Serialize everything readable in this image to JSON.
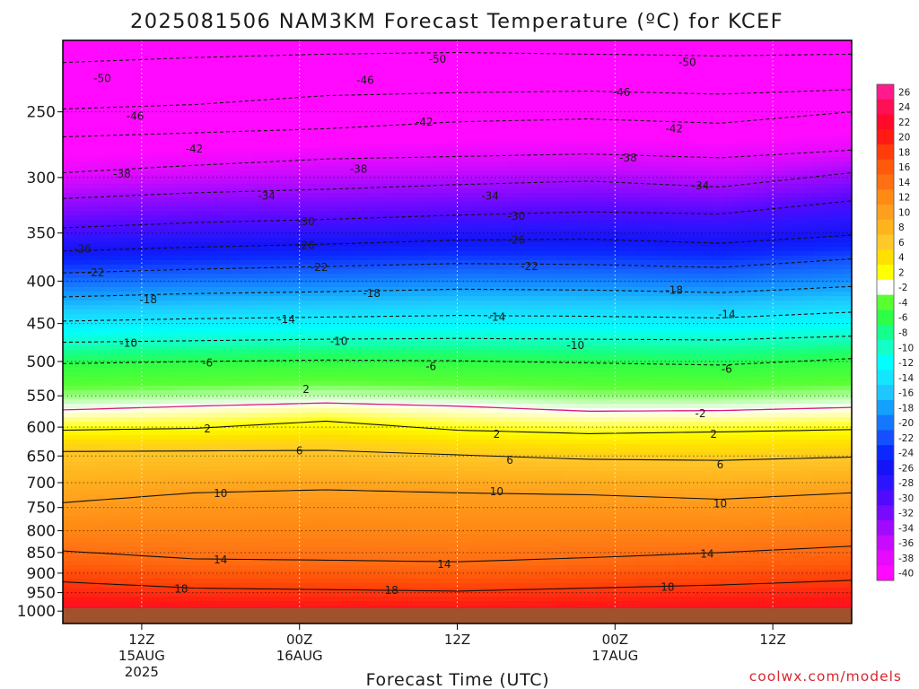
{
  "chart_data": {
    "type": "heatmap",
    "title": "2025081506 NAM3KM Forecast Temperature (ºC) for KCEF",
    "xlabel": "Forecast Time (UTC)",
    "ylabel": "",
    "credit": "coolwx.com/models",
    "y_scale": "log-pressure",
    "y_levels": [
      250,
      300,
      350,
      400,
      450,
      500,
      550,
      600,
      650,
      700,
      750,
      800,
      850,
      900,
      950,
      1000
    ],
    "y_tick_labels": [
      "250",
      "300",
      "350",
      "400",
      "450",
      "500",
      "550",
      "600",
      "650",
      "700",
      "750",
      "800",
      "850",
      "900",
      "950",
      "1000"
    ],
    "ylim": [
      1035,
      205
    ],
    "x_ticks": [
      {
        "hour": 6,
        "l1": "12Z",
        "l2": "15AUG",
        "l3": "2025"
      },
      {
        "hour": 18,
        "l1": "00Z",
        "l2": "16AUG",
        "l3": ""
      },
      {
        "hour": 30,
        "l1": "12Z",
        "l2": "",
        "l3": ""
      },
      {
        "hour": 42,
        "l1": "00Z",
        "l2": "17AUG",
        "l3": ""
      },
      {
        "hour": 54,
        "l1": "12Z",
        "l2": "",
        "l3": ""
      }
    ],
    "xlim": [
      0,
      60
    ],
    "grid": "dotted",
    "colorbar": {
      "placement": "right",
      "labels": [
        "26",
        "24",
        "22",
        "20",
        "18",
        "16",
        "14",
        "12",
        "10",
        "8",
        "6",
        "4",
        "2",
        "-2",
        "-4",
        "-6",
        "-8",
        "-10",
        "-12",
        "-14",
        "-16",
        "-18",
        "-20",
        "-22",
        "-24",
        "-26",
        "-28",
        "-30",
        "-32",
        "-34",
        "-36",
        "-38",
        "-40"
      ],
      "colors": [
        "#ff1b8c",
        "#ff0f55",
        "#ff0a2a",
        "#ff1a14",
        "#ff3c0a",
        "#ff5a0a",
        "#ff6f14",
        "#ff8a14",
        "#ff9f1e",
        "#ffb41e",
        "#ffc828",
        "#ffe000",
        "#ffff00",
        "#ffffff",
        "#5aff32",
        "#2dff46",
        "#14ff8c",
        "#14ffc8",
        "#00ffff",
        "#14e6ff",
        "#1ec8ff",
        "#14a0ff",
        "#1478ff",
        "#1450ff",
        "#0a28ff",
        "#1414f5",
        "#2d14ff",
        "#500aff",
        "#780aff",
        "#a00aff",
        "#c80aff",
        "#e60aff",
        "#ff0aff"
      ]
    },
    "isotherms": [
      {
        "temp": -50,
        "p": [
          218,
          215,
          213,
          212,
          213,
          214,
          213
        ]
      },
      {
        "temp": -46,
        "p": [
          248,
          245,
          239,
          237,
          236,
          238,
          235
        ]
      },
      {
        "temp": -42,
        "p": [
          268,
          265,
          262,
          257,
          255,
          258,
          250
        ]
      },
      {
        "temp": -38,
        "p": [
          296,
          290,
          285,
          283,
          281,
          284,
          278
        ]
      },
      {
        "temp": -34,
        "p": [
          318,
          313,
          310,
          306,
          303,
          308,
          296
        ]
      },
      {
        "temp": -30,
        "p": [
          345,
          340,
          337,
          333,
          330,
          332,
          320
        ]
      },
      {
        "temp": -26,
        "p": [
          368,
          364,
          361,
          357,
          356,
          360,
          352
        ]
      },
      {
        "temp": -22,
        "p": [
          391,
          387,
          384,
          381,
          382,
          385,
          376
        ]
      },
      {
        "temp": -18,
        "p": [
          418,
          414,
          412,
          409,
          410,
          413,
          406
        ]
      },
      {
        "temp": -14,
        "p": [
          447,
          444,
          442,
          440,
          441,
          443,
          436
        ]
      },
      {
        "temp": -10,
        "p": [
          474,
          472,
          470,
          469,
          470,
          471,
          466
        ]
      },
      {
        "temp": -6,
        "p": [
          503,
          500,
          498,
          499,
          502,
          505,
          496
        ]
      },
      {
        "temp": -2,
        "p": [
          572,
          566,
          561,
          566,
          574,
          573,
          568
        ]
      },
      {
        "temp": 2,
        "p": [
          605,
          602,
          590,
          605,
          611,
          608,
          604
        ]
      },
      {
        "temp": 6,
        "p": [
          642,
          641,
          640,
          648,
          656,
          658,
          652
        ]
      },
      {
        "temp": 10,
        "p": [
          740,
          720,
          714,
          720,
          724,
          733,
          720
        ]
      },
      {
        "temp": 14,
        "p": [
          846,
          865,
          868,
          872,
          862,
          850,
          835
        ]
      },
      {
        "temp": 18,
        "p": [
          922,
          938,
          942,
          946,
          938,
          930,
          918
        ]
      }
    ],
    "isotherm_hours": [
      0,
      10,
      20,
      30,
      40,
      50,
      60
    ],
    "contour_labels": [
      {
        "text": "-50",
        "hour": 3,
        "p": 228
      },
      {
        "text": "-50",
        "hour": 28.5,
        "p": 216
      },
      {
        "text": "-50",
        "hour": 47.5,
        "p": 218
      },
      {
        "text": "-46",
        "hour": 5.5,
        "p": 253
      },
      {
        "text": "-46",
        "hour": 23,
        "p": 229
      },
      {
        "text": "-46",
        "hour": 42.5,
        "p": 237
      },
      {
        "text": "-42",
        "hour": 10,
        "p": 277
      },
      {
        "text": "-42",
        "hour": 27.5,
        "p": 257
      },
      {
        "text": "-42",
        "hour": 46.5,
        "p": 262
      },
      {
        "text": "-38",
        "hour": 4.5,
        "p": 297
      },
      {
        "text": "-38",
        "hour": 22.5,
        "p": 293
      },
      {
        "text": "-38",
        "hour": 43,
        "p": 284
      },
      {
        "text": "-34",
        "hour": 15.5,
        "p": 316
      },
      {
        "text": "-34",
        "hour": 32.5,
        "p": 316
      },
      {
        "text": "-34",
        "hour": 48.5,
        "p": 307
      },
      {
        "text": "-30",
        "hour": 18.5,
        "p": 339
      },
      {
        "text": "-30",
        "hour": 34.5,
        "p": 334
      },
      {
        "text": "-26",
        "hour": 1.5,
        "p": 366
      },
      {
        "text": "-26",
        "hour": 18.5,
        "p": 362
      },
      {
        "text": "-26",
        "hour": 34.5,
        "p": 357
      },
      {
        "text": "-22",
        "hour": 2.5,
        "p": 391
      },
      {
        "text": "-22",
        "hour": 19.5,
        "p": 385
      },
      {
        "text": "-22",
        "hour": 35.5,
        "p": 384
      },
      {
        "text": "-18",
        "hour": 6.5,
        "p": 421
      },
      {
        "text": "-18",
        "hour": 23.5,
        "p": 414
      },
      {
        "text": "-18",
        "hour": 46.5,
        "p": 410
      },
      {
        "text": "-14",
        "hour": 17,
        "p": 445
      },
      {
        "text": "-14",
        "hour": 33,
        "p": 442
      },
      {
        "text": "-14",
        "hour": 50.5,
        "p": 439
      },
      {
        "text": "-10",
        "hour": 5,
        "p": 475
      },
      {
        "text": "-10",
        "hour": 21,
        "p": 473
      },
      {
        "text": "-10",
        "hour": 39,
        "p": 478
      },
      {
        "text": "-6",
        "hour": 11,
        "p": 502
      },
      {
        "text": "-6",
        "hour": 28,
        "p": 507
      },
      {
        "text": "-6",
        "hour": 50.5,
        "p": 511
      },
      {
        "text": "2",
        "hour": 18.5,
        "p": 540
      },
      {
        "text": "-2",
        "hour": 48.5,
        "p": 578
      },
      {
        "text": "2",
        "hour": 11,
        "p": 603
      },
      {
        "text": "2",
        "hour": 33,
        "p": 612
      },
      {
        "text": "2",
        "hour": 49.5,
        "p": 612
      },
      {
        "text": "6",
        "hour": 18,
        "p": 641
      },
      {
        "text": "6",
        "hour": 34,
        "p": 658
      },
      {
        "text": "6",
        "hour": 50,
        "p": 666
      },
      {
        "text": "10",
        "hour": 12,
        "p": 721
      },
      {
        "text": "10",
        "hour": 33,
        "p": 718
      },
      {
        "text": "10",
        "hour": 50,
        "p": 742
      },
      {
        "text": "14",
        "hour": 12,
        "p": 867
      },
      {
        "text": "14",
        "hour": 29,
        "p": 878
      },
      {
        "text": "14",
        "hour": 49,
        "p": 853
      },
      {
        "text": "18",
        "hour": 9,
        "p": 940
      },
      {
        "text": "18",
        "hour": 25,
        "p": 944
      },
      {
        "text": "18",
        "hour": 46,
        "p": 936
      }
    ]
  }
}
